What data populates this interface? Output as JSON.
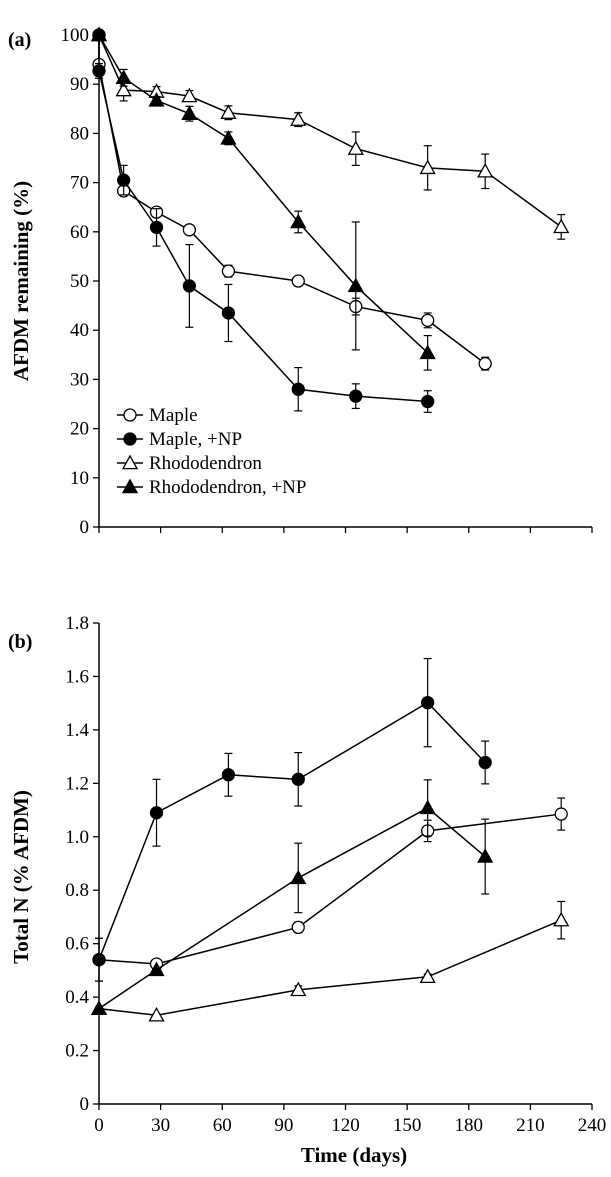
{
  "figure": {
    "xlabel": "Time (days)",
    "x_ticks": [
      0,
      30,
      60,
      90,
      120,
      150,
      180,
      210,
      240
    ],
    "legend": [
      {
        "label": "Maple",
        "marker": "circle",
        "fill": "open"
      },
      {
        "label": "Maple, +NP",
        "marker": "circle",
        "fill": "filled"
      },
      {
        "label": "Rhododendron",
        "marker": "triangle",
        "fill": "open"
      },
      {
        "label": "Rhododendron, +NP",
        "marker": "triangle",
        "fill": "filled"
      }
    ],
    "colors": {
      "line": "#000000",
      "open_fill": "#ffffff",
      "filled": "#000000"
    }
  },
  "chart_data": [
    {
      "type": "line",
      "panel_label": "(a)",
      "ylabel": "AFDM remaining (%)",
      "xlim": [
        0,
        240
      ],
      "ylim": [
        0,
        100
      ],
      "y_ticks": [
        0,
        10,
        20,
        30,
        40,
        50,
        60,
        70,
        80,
        90,
        100
      ],
      "y_tick_labels": [
        "0",
        "10",
        "20",
        "30",
        "40",
        "50",
        "60",
        "70",
        "80",
        "90",
        "100"
      ],
      "legend_position": "bottom-left",
      "series": [
        {
          "name": "Maple",
          "marker": "circle",
          "fill": "open",
          "x": [
            0,
            0,
            12,
            28,
            44,
            63,
            97,
            125,
            160,
            188
          ],
          "y": [
            100,
            94,
            68.3,
            64,
            60.4,
            52,
            50,
            44.8,
            42,
            33.2
          ],
          "err": [
            0,
            0,
            0.8,
            0.8,
            0.8,
            1.2,
            0.8,
            1.7,
            1.5,
            1.3
          ]
        },
        {
          "name": "Maple, +NP",
          "marker": "circle",
          "fill": "filled",
          "x": [
            0,
            0,
            12,
            28,
            44,
            63,
            97,
            125,
            160
          ],
          "y": [
            100,
            92.7,
            70.5,
            60.9,
            49,
            43.5,
            28,
            26.6,
            25.5
          ],
          "err": [
            0,
            1.5,
            3,
            3.8,
            8.4,
            5.8,
            4.4,
            2.5,
            2.2
          ]
        },
        {
          "name": "Rhododendron",
          "marker": "triangle",
          "fill": "open",
          "x": [
            0,
            12,
            28,
            44,
            63,
            97,
            125,
            160,
            188,
            225
          ],
          "y": [
            100,
            88.8,
            88.5,
            87.6,
            84.2,
            82.8,
            76.9,
            73,
            72.3,
            61
          ],
          "err": [
            0,
            2.2,
            1,
            1.1,
            1.4,
            1.4,
            3.4,
            4.5,
            3.5,
            2.5
          ]
        },
        {
          "name": "Rhododendron, +NP",
          "marker": "triangle",
          "fill": "filled",
          "x": [
            0,
            12,
            28,
            44,
            63,
            97,
            125,
            160
          ],
          "y": [
            100,
            91.3,
            86.7,
            84,
            79,
            62,
            49,
            35.4
          ],
          "err": [
            0,
            1.7,
            0.8,
            1.5,
            1.3,
            2.2,
            13,
            3.5
          ]
        }
      ]
    },
    {
      "type": "line",
      "panel_label": "(b)",
      "ylabel": "Total N (% AFDM)",
      "xlim": [
        0,
        240
      ],
      "ylim": [
        0,
        1.8
      ],
      "y_ticks": [
        0,
        0.2,
        0.4,
        0.6,
        0.8,
        1.0,
        1.2,
        1.4,
        1.6,
        1.8
      ],
      "y_tick_labels": [
        "0",
        "0.2",
        "0.4",
        "0.6",
        "0.8",
        "1.0",
        "1.2",
        "1.4",
        "1.6",
        "1.8"
      ],
      "series": [
        {
          "name": "Maple",
          "marker": "circle",
          "fill": "open",
          "x": [
            0,
            28,
            97,
            160,
            225
          ],
          "y": [
            0.54,
            0.524,
            0.661,
            1.022,
            1.085
          ],
          "err": [
            0.08,
            0.01,
            0.02,
            0.04,
            0.06
          ]
        },
        {
          "name": "Maple, +NP",
          "marker": "circle",
          "fill": "filled",
          "x": [
            0,
            28,
            63,
            97,
            160,
            188
          ],
          "y": [
            0.54,
            1.09,
            1.232,
            1.215,
            1.502,
            1.278
          ],
          "err": [
            0.08,
            0.125,
            0.08,
            0.1,
            0.165,
            0.08
          ]
        },
        {
          "name": "Rhododendron",
          "marker": "triangle",
          "fill": "open",
          "x": [
            0,
            28,
            97,
            160,
            225
          ],
          "y": [
            0.357,
            0.332,
            0.427,
            0.476,
            0.688
          ],
          "err": [
            0.005,
            0.005,
            0.015,
            0.01,
            0.07
          ]
        },
        {
          "name": "Rhododendron, +NP",
          "marker": "triangle",
          "fill": "filled",
          "x": [
            0,
            28,
            97,
            160,
            188
          ],
          "y": [
            0.357,
            0.502,
            0.846,
            1.108,
            0.926
          ],
          "err": [
            0.005,
            0.005,
            0.13,
            0.105,
            0.14
          ]
        }
      ]
    }
  ]
}
